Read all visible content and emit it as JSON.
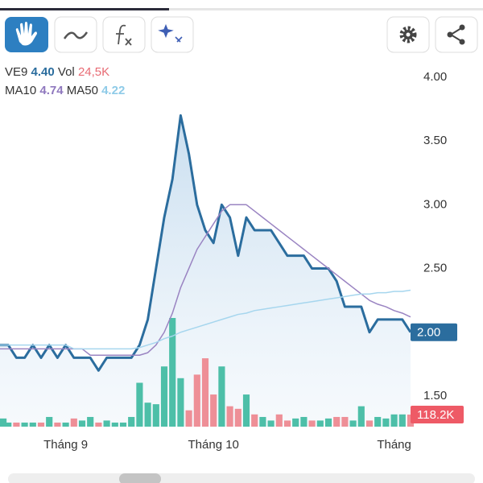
{
  "chart_data": {
    "type": "line",
    "categories": [
      null,
      null,
      null,
      null,
      null,
      null,
      null,
      null,
      "Tháng 9",
      null,
      null,
      null,
      null,
      null,
      null,
      null,
      null,
      null,
      null,
      null,
      null,
      null,
      null,
      null,
      null,
      null,
      "Tháng 10",
      null,
      null,
      null,
      null,
      null,
      null,
      null,
      null,
      null,
      null,
      null,
      null,
      null,
      null,
      null,
      null,
      null,
      null,
      null,
      null,
      null,
      "Tháng",
      null,
      null
    ],
    "series": [
      {
        "name": "VE9",
        "legend_value": "4.40",
        "color": "#2b6d9e",
        "values": [
          1.9,
          1.9,
          1.8,
          1.8,
          1.9,
          1.8,
          1.9,
          1.8,
          1.9,
          1.8,
          1.8,
          1.8,
          1.7,
          1.8,
          1.8,
          1.8,
          1.8,
          1.9,
          2.1,
          2.5,
          2.9,
          3.2,
          3.7,
          3.4,
          3.0,
          2.8,
          2.7,
          3.0,
          2.9,
          2.6,
          2.9,
          2.8,
          2.8,
          2.8,
          2.7,
          2.6,
          2.6,
          2.6,
          2.5,
          2.5,
          2.5,
          2.4,
          2.2,
          2.2,
          2.2,
          2.0,
          2.1,
          2.1,
          2.1,
          2.1,
          2.0
        ]
      },
      {
        "name": "MA10",
        "legend_value": "4.74",
        "color": "#9a84c2",
        "values": [
          1.87,
          1.87,
          1.87,
          1.87,
          1.87,
          1.87,
          1.87,
          1.87,
          1.87,
          1.87,
          1.87,
          1.82,
          1.82,
          1.82,
          1.82,
          1.82,
          1.82,
          1.82,
          1.84,
          1.9,
          2.0,
          2.15,
          2.35,
          2.5,
          2.65,
          2.75,
          2.85,
          2.95,
          3.0,
          3.0,
          3.0,
          2.95,
          2.9,
          2.85,
          2.8,
          2.75,
          2.7,
          2.65,
          2.6,
          2.55,
          2.5,
          2.45,
          2.4,
          2.35,
          2.3,
          2.25,
          2.22,
          2.2,
          2.17,
          2.15,
          2.12
        ]
      },
      {
        "name": "MA50",
        "legend_value": "4.22",
        "color": "#a6d6ee",
        "values": [
          1.9,
          1.9,
          1.9,
          1.9,
          1.9,
          1.9,
          1.9,
          1.9,
          1.9,
          1.87,
          1.87,
          1.87,
          1.87,
          1.87,
          1.87,
          1.87,
          1.87,
          1.88,
          1.9,
          1.92,
          1.95,
          1.97,
          2.0,
          2.02,
          2.04,
          2.06,
          2.08,
          2.1,
          2.12,
          2.14,
          2.15,
          2.17,
          2.18,
          2.19,
          2.2,
          2.21,
          2.22,
          2.23,
          2.24,
          2.25,
          2.26,
          2.27,
          2.28,
          2.29,
          2.3,
          2.3,
          2.31,
          2.31,
          2.32,
          2.32,
          2.33
        ]
      },
      {
        "name": "Vol",
        "legend_value": "24,5K",
        "axis": "y2",
        "up_color": "#4dbfa8",
        "down_color": "#ee8f97",
        "values": [
          80,
          40,
          40,
          40,
          40,
          40,
          95,
          40,
          40,
          80,
          60,
          95,
          40,
          60,
          40,
          40,
          95,
          430,
          235,
          220,
          590,
          1065,
          475,
          160,
          510,
          670,
          315,
          590,
          200,
          175,
          315,
          120,
          95,
          60,
          120,
          60,
          80,
          95,
          60,
          60,
          80,
          95,
          95,
          60,
          200,
          60,
          95,
          80,
          120,
          120,
          118.2
        ]
      }
    ],
    "ylim": [
      1.26,
      4.1
    ],
    "yticks": [
      {
        "value": 4,
        "label": "4.00"
      },
      {
        "value": 3.5,
        "label": "3.50"
      },
      {
        "value": 3,
        "label": "3.00"
      },
      {
        "value": 2.5,
        "label": "2.50"
      },
      {
        "value": 2,
        "label": "2.00"
      },
      {
        "value": 1.5,
        "label": "1.50"
      }
    ],
    "y2lim": [
      0,
      3550
    ],
    "markers": [
      {
        "value": 2.0,
        "label": "2.00",
        "color": "#2b6d9e"
      },
      {
        "value": 118.2,
        "label": "118.2K",
        "axis": "y2",
        "color": "#ee5a66"
      }
    ]
  }
}
